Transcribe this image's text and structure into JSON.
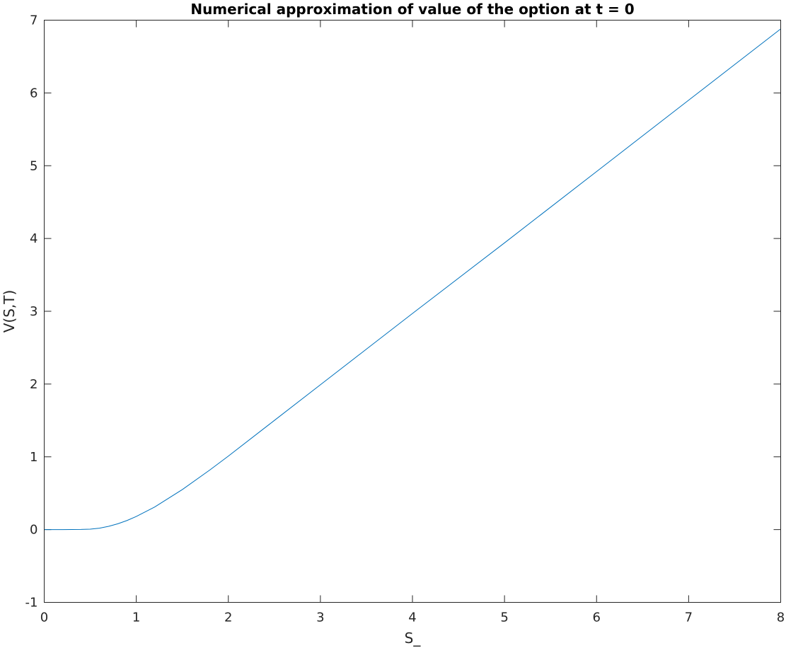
{
  "chart_data": {
    "type": "line",
    "title": "Numerical approximation of value of the option at t = 0",
    "xlabel": "S_",
    "ylabel": "V(S,T)",
    "xlim": [
      0,
      8
    ],
    "ylim": [
      -1,
      7
    ],
    "xticks": [
      0,
      1,
      2,
      3,
      4,
      5,
      6,
      7,
      8
    ],
    "yticks": [
      -1,
      0,
      1,
      2,
      3,
      4,
      5,
      6,
      7
    ],
    "xtick_labels": [
      "0",
      "1",
      "2",
      "3",
      "4",
      "5",
      "6",
      "7",
      "8"
    ],
    "ytick_labels": [
      "-1",
      "0",
      "1",
      "2",
      "3",
      "4",
      "5",
      "6",
      "7"
    ],
    "grid": false,
    "line_color": "#0072BD",
    "series": [
      {
        "x": [
          0,
          0.2,
          0.4,
          0.5,
          0.6,
          0.7,
          0.8,
          0.9,
          1.0,
          1.2,
          1.5,
          1.8,
          2.0,
          2.5,
          3.0,
          3.5,
          4.0,
          5.0,
          6.0,
          7.0,
          8.0
        ],
        "y": [
          0,
          0,
          0.002,
          0.006,
          0.02,
          0.045,
          0.08,
          0.125,
          0.18,
          0.31,
          0.55,
          0.82,
          1.01,
          1.5,
          1.99,
          2.48,
          2.97,
          3.94,
          4.92,
          5.9,
          6.88
        ]
      }
    ]
  }
}
